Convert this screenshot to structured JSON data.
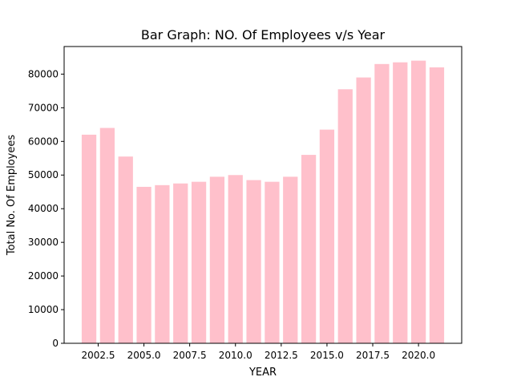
{
  "chart_data": {
    "type": "bar",
    "title": "Bar Graph: NO. Of Employees v/s Year",
    "xlabel": "YEAR",
    "ylabel": "Total No. Of Employees",
    "x": [
      2002,
      2003,
      2004,
      2005,
      2006,
      2007,
      2008,
      2009,
      2010,
      2011,
      2012,
      2013,
      2014,
      2015,
      2016,
      2017,
      2018,
      2019,
      2020,
      2021
    ],
    "values": [
      62000,
      64000,
      55500,
      46500,
      47000,
      47500,
      48000,
      49500,
      50000,
      48500,
      48000,
      49500,
      56000,
      63500,
      75500,
      79000,
      83000,
      83500,
      84000,
      82000
    ],
    "bar_color": "#ffc0cb",
    "xlim": [
      2000.64,
      2022.36
    ],
    "ylim": [
      0,
      88200
    ],
    "xticks": [
      2002.5,
      2005.0,
      2007.5,
      2010.0,
      2012.5,
      2015.0,
      2017.5,
      2020.0
    ],
    "xtick_labels": [
      "2002.5",
      "2005.0",
      "2007.5",
      "2010.0",
      "2012.5",
      "2015.0",
      "2017.5",
      "2020.0"
    ],
    "yticks": [
      0,
      10000,
      20000,
      30000,
      40000,
      50000,
      60000,
      70000,
      80000
    ],
    "ytick_labels": [
      "0",
      "10000",
      "20000",
      "30000",
      "40000",
      "50000",
      "60000",
      "70000",
      "80000"
    ],
    "grid": false,
    "legend": "none"
  }
}
